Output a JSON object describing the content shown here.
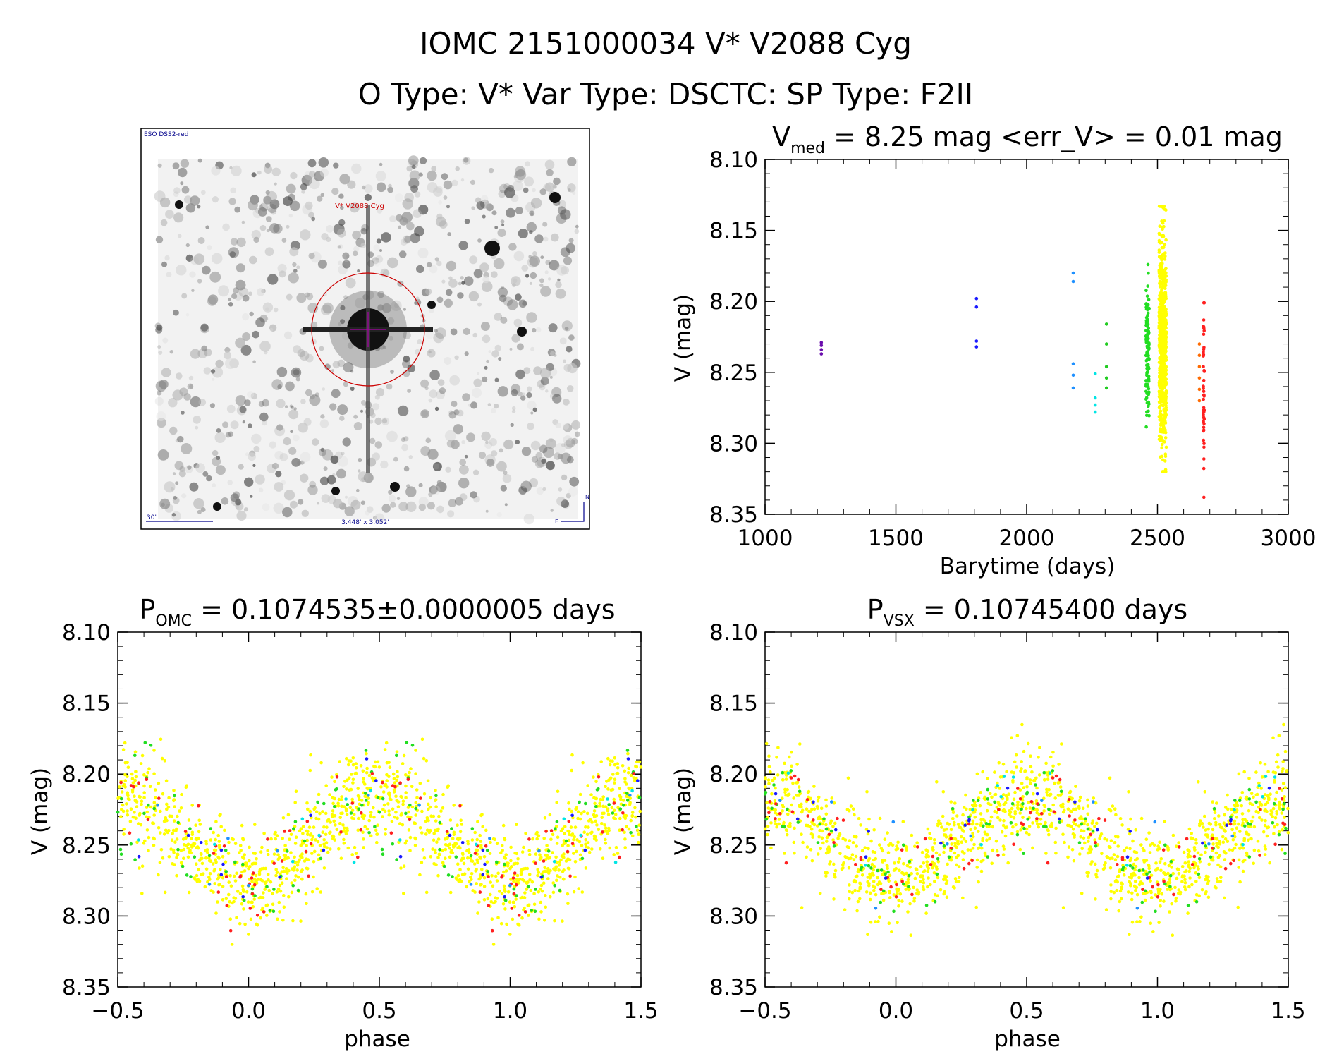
{
  "header": {
    "title": "IOMC 2151000034   V* V2088 Cyg",
    "subtitle": "O Type: V*  Var Type: DSCTC:  SP Type: F2II"
  },
  "image_panel": {
    "survey_label": "ESO DSS2-red",
    "target_label": "V* V2088 Cyg",
    "scale_label": "30\"",
    "fov_label": "3.448' x 3.052'",
    "compass_n": "N",
    "compass_e": "E"
  },
  "chart_data": [
    {
      "type": "scatter",
      "title_parts": [
        "V",
        "med",
        " = 8.25 mag <err_V> = 0.01 mag"
      ],
      "xlabel": "Barytime (days)",
      "ylabel": "V (mag)",
      "xlim": [
        1000,
        3000
      ],
      "ylim": [
        8.35,
        8.1
      ],
      "y_reversed": true,
      "xticks": [
        "1000",
        "1500",
        "2000",
        "2500",
        "3000"
      ],
      "yticks": [
        "8.10",
        "8.15",
        "8.20",
        "8.25",
        "8.30",
        "8.35"
      ],
      "series": [
        {
          "color": "#6a0dad",
          "x": [
            1215,
            1215,
            1215,
            1215
          ],
          "y": [
            8.229,
            8.231,
            8.234,
            8.237
          ]
        },
        {
          "color": "#1a1aff",
          "x": [
            1808,
            1808,
            1808,
            1808
          ],
          "y": [
            8.198,
            8.204,
            8.228,
            8.232
          ]
        },
        {
          "color": "#1e90ff",
          "x": [
            2178,
            2178,
            2178,
            2178,
            2178
          ],
          "y": [
            8.18,
            8.186,
            8.244,
            8.252,
            8.261
          ]
        },
        {
          "color": "#00e5e5",
          "x": [
            2262,
            2262,
            2262,
            2262
          ],
          "y": [
            8.251,
            8.268,
            8.273,
            8.278
          ]
        },
        {
          "color": "#22cc22",
          "x": [
            2305,
            2305,
            2305,
            2305,
            2305
          ],
          "y": [
            8.216,
            8.23,
            8.246,
            8.254,
            8.261
          ]
        },
        {
          "color": "#ff6a00",
          "x": [
            2660,
            2660,
            2660,
            2660,
            2660,
            2660
          ],
          "y": [
            8.23,
            8.238,
            8.246,
            8.254,
            8.262,
            8.27
          ]
        }
      ],
      "bands": [
        {
          "color": "#22dd22",
          "x_center": 2462,
          "x_spread": 6,
          "y_min": 8.174,
          "y_max": 8.29,
          "n": 110
        },
        {
          "color": "#ffff00",
          "x_center": 2520,
          "x_spread": 14,
          "y_min": 8.133,
          "y_max": 8.32,
          "n": 700
        },
        {
          "color": "#ff2020",
          "x_center": 2677,
          "x_spread": 2,
          "y_min": 8.201,
          "y_max": 8.338,
          "n": 45
        }
      ]
    },
    {
      "type": "scatter",
      "title_parts": [
        "P",
        "OMC",
        " = 0.1074535±0.0000005 days"
      ],
      "xlabel": "phase",
      "ylabel": "V (mag)",
      "xlim": [
        -0.5,
        1.5
      ],
      "ylim": [
        8.35,
        8.1
      ],
      "y_reversed": true,
      "xticks": [
        "−0.5",
        "0.0",
        "0.5",
        "1.0",
        "1.5"
      ],
      "yticks": [
        "8.10",
        "8.15",
        "8.20",
        "8.25",
        "8.30",
        "8.35"
      ],
      "model": {
        "mean": 8.245,
        "amplitude": 0.03,
        "min_phase": 0.0,
        "spread": 0.018
      },
      "counts": {
        "#ffff00": 700,
        "#22dd22": 60,
        "#ff2020": 45,
        "#1a1aff": 12,
        "#00e5e5": 8,
        "#1e90ff": 6
      }
    },
    {
      "type": "scatter",
      "title_parts": [
        "P",
        "VSX",
        " = 0.10745400 days"
      ],
      "xlabel": "phase",
      "ylabel": "V (mag)",
      "xlim": [
        -0.5,
        1.5
      ],
      "ylim": [
        8.35,
        8.1
      ],
      "y_reversed": true,
      "xticks": [
        "−0.5",
        "0.0",
        "0.5",
        "1.0",
        "1.5"
      ],
      "yticks": [
        "8.10",
        "8.15",
        "8.20",
        "8.25",
        "8.30",
        "8.35"
      ],
      "model": {
        "mean": 8.245,
        "amplitude": 0.03,
        "min_phase": 0.0,
        "spread": 0.018
      },
      "counts": {
        "#ffff00": 700,
        "#22dd22": 60,
        "#ff2020": 45,
        "#1a1aff": 12,
        "#00e5e5": 8,
        "#1e90ff": 6
      }
    }
  ]
}
